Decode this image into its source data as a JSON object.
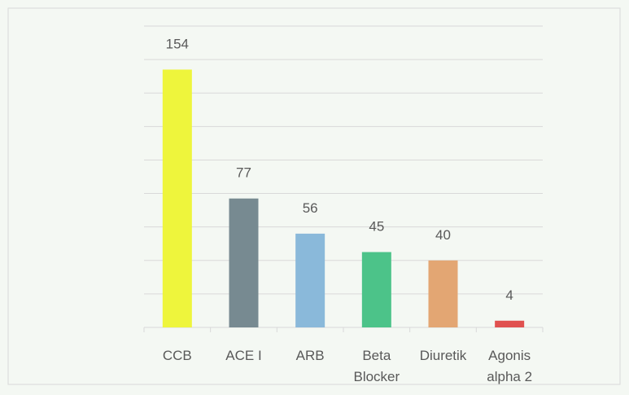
{
  "chart_data": {
    "type": "bar",
    "categories": [
      "CCB",
      "ACE I",
      "ARB",
      "Beta Blocker",
      "Diuretik",
      "Agonis alpha 2"
    ],
    "values": [
      154,
      77,
      56,
      45,
      40,
      4
    ],
    "colors": [
      "#eef53c",
      "#778a91",
      "#8ab9da",
      "#4cc389",
      "#e3a673",
      "#e0514f"
    ],
    "ylim": [
      0,
      180
    ],
    "yticks": [
      0,
      20,
      40,
      60,
      80,
      100,
      120,
      140,
      160,
      180
    ],
    "grid": true
  }
}
